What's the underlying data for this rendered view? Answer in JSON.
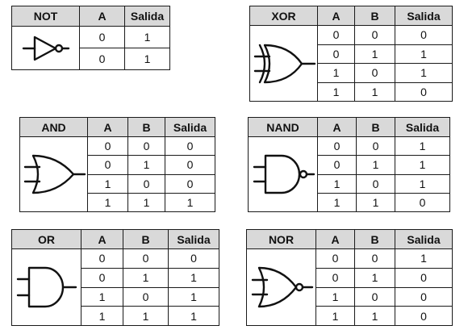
{
  "headers": {
    "a": "A",
    "b": "B",
    "out": "Salida"
  },
  "gates": {
    "not": {
      "name": "NOT",
      "rows": [
        [
          "0",
          "1"
        ],
        [
          "0",
          "1"
        ]
      ]
    },
    "xor": {
      "name": "XOR",
      "rows": [
        [
          "0",
          "0",
          "0"
        ],
        [
          "0",
          "1",
          "1"
        ],
        [
          "1",
          "0",
          "1"
        ],
        [
          "1",
          "1",
          "0"
        ]
      ]
    },
    "and": {
      "name": "AND",
      "rows": [
        [
          "0",
          "0",
          "0"
        ],
        [
          "0",
          "1",
          "0"
        ],
        [
          "1",
          "0",
          "0"
        ],
        [
          "1",
          "1",
          "1"
        ]
      ]
    },
    "nand": {
      "name": "NAND",
      "rows": [
        [
          "0",
          "0",
          "1"
        ],
        [
          "0",
          "1",
          "1"
        ],
        [
          "1",
          "0",
          "1"
        ],
        [
          "1",
          "1",
          "0"
        ]
      ]
    },
    "or": {
      "name": "OR",
      "rows": [
        [
          "0",
          "0",
          "0"
        ],
        [
          "0",
          "1",
          "1"
        ],
        [
          "1",
          "0",
          "1"
        ],
        [
          "1",
          "1",
          "1"
        ]
      ]
    },
    "nor": {
      "name": "NOR",
      "rows": [
        [
          "0",
          "0",
          "1"
        ],
        [
          "0",
          "1",
          "0"
        ],
        [
          "1",
          "0",
          "0"
        ],
        [
          "1",
          "1",
          "0"
        ]
      ]
    }
  }
}
